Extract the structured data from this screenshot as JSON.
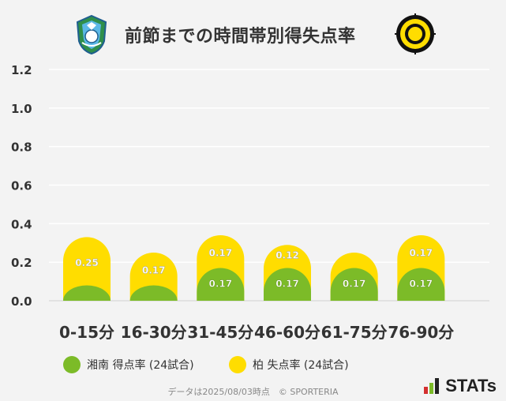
{
  "title": "前節までの時間帯別得失点率",
  "colors": {
    "home": "#7cbb28",
    "away": "#ffdd00",
    "grid": "#ffffff",
    "background": "#f3f3f3"
  },
  "legend": {
    "home": "湘南 得点率 (24試合)",
    "away": "柏 失点率 (24試合)"
  },
  "footer": "データは2025/08/03時点　© SPORTERIA",
  "brand": "STATs",
  "chart_data": {
    "type": "bar",
    "title": "前節までの時間帯別得失点率",
    "categories": [
      "0-15分",
      "16-30分",
      "31-45分",
      "46-60分",
      "61-75分",
      "76-90分"
    ],
    "series": [
      {
        "name": "湘南 得点率 (24試合)",
        "values": [
          0.08,
          0.08,
          0.17,
          0.17,
          0.17,
          0.17
        ],
        "labels": [
          "",
          "",
          "0.17",
          "0.17",
          "0.17",
          "0.17"
        ]
      },
      {
        "name": "柏 失点率 (24試合)",
        "values": [
          0.25,
          0.17,
          0.17,
          0.12,
          0.08,
          0.17
        ],
        "labels": [
          "0.25",
          "0.17",
          "0.17",
          "0.12",
          "",
          "0.17"
        ]
      }
    ],
    "stacked": true,
    "yticks": [
      "0.0",
      "0.2",
      "0.4",
      "0.6",
      "0.8",
      "1.0",
      "1.2"
    ],
    "ylim": [
      0,
      1.2
    ],
    "grid": true,
    "legend_position": "bottom"
  }
}
